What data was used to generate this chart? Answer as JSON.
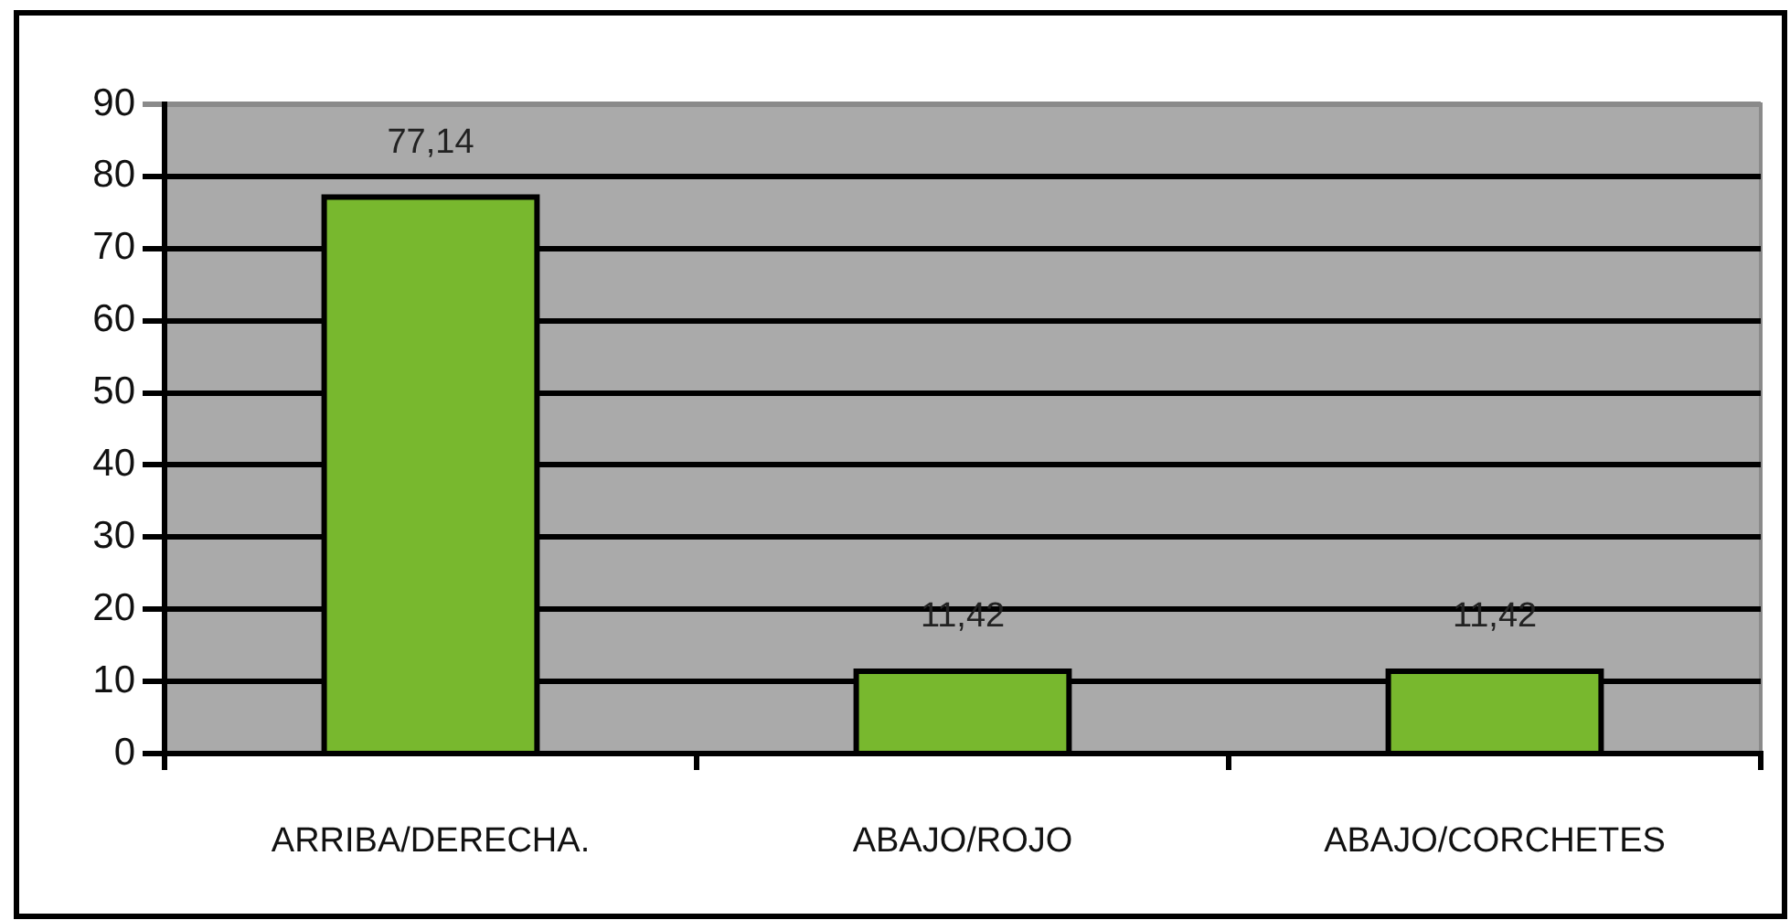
{
  "chart_data": {
    "type": "bar",
    "categories": [
      "ARRIBA/DERECHA.",
      "ABAJO/ROJO",
      "ABAJO/CORCHETES"
    ],
    "values": [
      77.14,
      11.42,
      11.42
    ],
    "value_labels": [
      "77,14",
      "11,42",
      "11,42"
    ],
    "color": "#78b82e",
    "ylim": [
      0,
      90
    ],
    "yticks": [
      0,
      10,
      20,
      30,
      40,
      50,
      60,
      70,
      80,
      90
    ],
    "grid": "y"
  }
}
